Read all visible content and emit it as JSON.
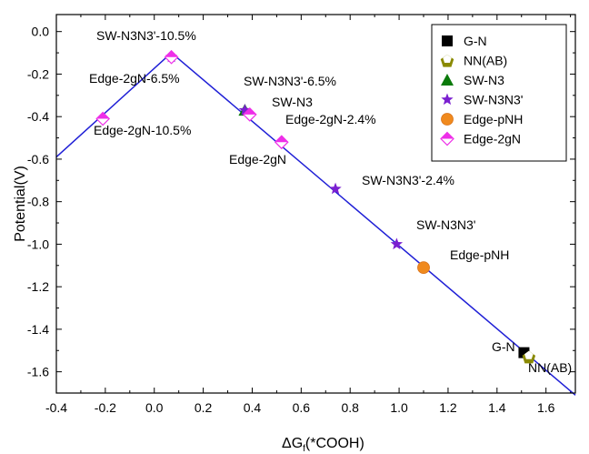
{
  "chart_data": {
    "type": "scatter",
    "xlabel_main": "ΔG",
    "xlabel_sub": "f",
    "xlabel_rest": "(*COOH)",
    "ylabel": "Potential(V)",
    "xlim": [
      -0.4,
      1.72
    ],
    "ylim": [
      -1.7,
      0.08
    ],
    "x_ticks": [
      "-0.4",
      "-0.2",
      "0.0",
      "0.2",
      "0.4",
      "0.6",
      "0.8",
      "1.0",
      "1.2",
      "1.4",
      "1.6"
    ],
    "y_ticks": [
      "0.0",
      "-0.2",
      "-0.4",
      "-0.6",
      "-0.8",
      "-1.0",
      "-1.2",
      "-1.4",
      "-1.6"
    ],
    "x_tick_values": [
      -0.4,
      -0.2,
      0.0,
      0.2,
      0.4,
      0.6,
      0.8,
      1.0,
      1.2,
      1.4,
      1.6
    ],
    "y_tick_values": [
      0.0,
      -0.2,
      -0.4,
      -0.6,
      -0.8,
      -1.0,
      -1.2,
      -1.4,
      -1.6
    ],
    "legend_position": "top-right",
    "line_color": "#1f1fd6",
    "volcano_lines": [
      {
        "points": [
          [
            -0.4,
            -0.59
          ],
          [
            0.07,
            -0.1
          ]
        ]
      },
      {
        "points": [
          [
            0.07,
            -0.1
          ],
          [
            1.72,
            -1.71
          ]
        ]
      }
    ],
    "series": [
      {
        "name": "G-N",
        "marker": "square",
        "color": "#000000",
        "points": [
          [
            1.51,
            -1.51
          ]
        ]
      },
      {
        "name": "NN(AB)",
        "marker": "pentagon",
        "color": "#8a8a00",
        "points": [
          [
            1.53,
            -1.53
          ]
        ]
      },
      {
        "name": "SW-N3",
        "marker": "triangle",
        "color": "#0a7a0a",
        "points": [
          [
            0.37,
            -0.37
          ]
        ]
      },
      {
        "name": "SW-N3N3'",
        "marker": "star",
        "color": "#7a1fd0",
        "points": [
          [
            0.07,
            -0.12
          ],
          [
            0.37,
            -0.37
          ],
          [
            0.74,
            -0.74
          ],
          [
            0.99,
            -1.0
          ]
        ]
      },
      {
        "name": "Edge-pNH",
        "marker": "circle",
        "color": "#f08a1e",
        "points": [
          [
            1.1,
            -1.11
          ]
        ]
      },
      {
        "name": "Edge-2gN",
        "marker": "diamond",
        "color": "#ee2ee8",
        "points": [
          [
            -0.21,
            -0.41
          ],
          [
            0.07,
            -0.12
          ],
          [
            0.39,
            -0.39
          ],
          [
            0.52,
            -0.52
          ]
        ]
      }
    ],
    "annotations": [
      {
        "text": "SW-N3N3'-10.5%"
      },
      {
        "text": "Edge-2gN-6.5%"
      },
      {
        "text": "Edge-2gN-10.5%"
      },
      {
        "text": "SW-N3N3'-6.5%"
      },
      {
        "text": "SW-N3"
      },
      {
        "text": "Edge-2gN-2.4%"
      },
      {
        "text": "Edge-2gN"
      },
      {
        "text": "SW-N3N3'-2.4%"
      },
      {
        "text": "SW-N3N3'"
      },
      {
        "text": "Edge-pNH"
      },
      {
        "text": "G-N"
      },
      {
        "text": "NN(AB)"
      }
    ]
  }
}
